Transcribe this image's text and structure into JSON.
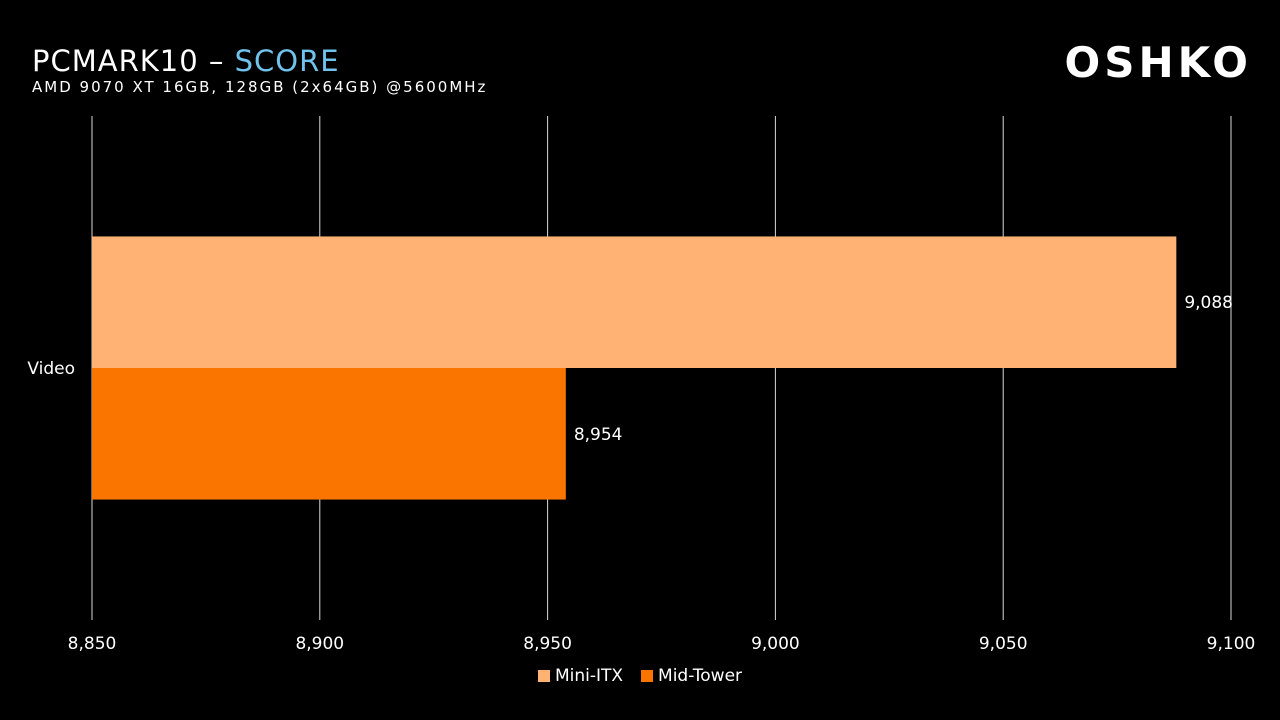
{
  "header": {
    "title_main": "PCMARK10 – ",
    "title_accent": "SCORE",
    "subtitle": "AMD 9070 XT 16GB, 128GB (2x64GB) @5600MHz",
    "logo": "OSHKO"
  },
  "colors": {
    "background": "#000000",
    "title_accent": "#6fc3ec",
    "gridline": "#d9d9d9",
    "text": "#ffffff"
  },
  "chart_data": {
    "type": "bar",
    "orientation": "horizontal",
    "categories": [
      "Video"
    ],
    "series": [
      {
        "name": "Mini-ITX",
        "values": [
          9088
        ],
        "value_labels": [
          "9,088"
        ],
        "color": "#ffb273"
      },
      {
        "name": "Mid-Tower",
        "values": [
          8954
        ],
        "value_labels": [
          "8,954"
        ],
        "color": "#fa7500"
      }
    ],
    "xlim": [
      8850,
      9100
    ],
    "x_ticks": [
      8850,
      8900,
      8950,
      9000,
      9050,
      9100
    ],
    "x_tick_labels": [
      "8,850",
      "8,900",
      "8,950",
      "9,000",
      "9,050",
      "9,100"
    ],
    "grid": true,
    "legend_position": "bottom"
  }
}
